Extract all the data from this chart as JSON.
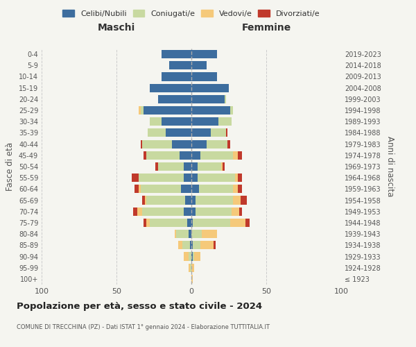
{
  "age_groups": [
    "100+",
    "95-99",
    "90-94",
    "85-89",
    "80-84",
    "75-79",
    "70-74",
    "65-69",
    "60-64",
    "55-59",
    "50-54",
    "45-49",
    "40-44",
    "35-39",
    "30-34",
    "25-29",
    "20-24",
    "15-19",
    "10-14",
    "5-9",
    "0-4"
  ],
  "birth_years": [
    "≤ 1923",
    "1924-1928",
    "1929-1933",
    "1934-1938",
    "1939-1943",
    "1944-1948",
    "1949-1953",
    "1954-1958",
    "1959-1963",
    "1964-1968",
    "1969-1973",
    "1974-1978",
    "1979-1983",
    "1984-1988",
    "1989-1993",
    "1994-1998",
    "1999-2003",
    "2004-2008",
    "2009-2013",
    "2014-2018",
    "2019-2023"
  ],
  "maschi": {
    "celibi": [
      0,
      0,
      0,
      1,
      2,
      3,
      5,
      4,
      7,
      5,
      5,
      8,
      13,
      17,
      20,
      32,
      22,
      28,
      20,
      15,
      20
    ],
    "coniugati": [
      0,
      1,
      2,
      5,
      8,
      25,
      28,
      26,
      27,
      30,
      17,
      22,
      20,
      12,
      8,
      2,
      0,
      0,
      0,
      0,
      0
    ],
    "vedovi": [
      0,
      1,
      3,
      3,
      1,
      2,
      3,
      1,
      1,
      0,
      0,
      0,
      0,
      0,
      0,
      1,
      0,
      0,
      0,
      0,
      0
    ],
    "divorziati": [
      0,
      0,
      0,
      0,
      0,
      2,
      3,
      2,
      3,
      5,
      2,
      2,
      1,
      0,
      0,
      0,
      0,
      0,
      0,
      0,
      0
    ]
  },
  "femmine": {
    "nubili": [
      0,
      0,
      1,
      1,
      0,
      1,
      3,
      3,
      5,
      4,
      4,
      6,
      10,
      13,
      18,
      26,
      22,
      25,
      17,
      10,
      17
    ],
    "coniugate": [
      0,
      0,
      1,
      5,
      7,
      25,
      24,
      25,
      23,
      25,
      16,
      22,
      14,
      10,
      9,
      2,
      1,
      0,
      0,
      0,
      0
    ],
    "vedove": [
      1,
      2,
      4,
      9,
      10,
      10,
      5,
      5,
      3,
      2,
      1,
      3,
      0,
      0,
      0,
      0,
      0,
      0,
      0,
      0,
      0
    ],
    "divorziate": [
      0,
      0,
      0,
      1,
      0,
      3,
      2,
      4,
      3,
      3,
      1,
      3,
      2,
      1,
      0,
      0,
      0,
      0,
      0,
      0,
      0
    ]
  },
  "colors": {
    "celibi_nubili": "#3d6d9e",
    "coniugati": "#c8d9a0",
    "vedovi": "#f5c97a",
    "divorziati": "#c0392b"
  },
  "title": "Popolazione per età, sesso e stato civile - 2024",
  "subtitle": "COMUNE DI TRECCHINA (PZ) - Dati ISTAT 1° gennaio 2024 - Elaborazione TUTTITALIA.IT",
  "xlabel_left": "Maschi",
  "xlabel_right": "Femmine",
  "ylabel": "Fasce di età",
  "ylabel_right": "Anni di nascita",
  "xlim": 100,
  "background_color": "#f5f5f0",
  "legend_labels": [
    "Celibi/Nubili",
    "Coniugati/e",
    "Vedovi/e",
    "Divorziati/e"
  ]
}
